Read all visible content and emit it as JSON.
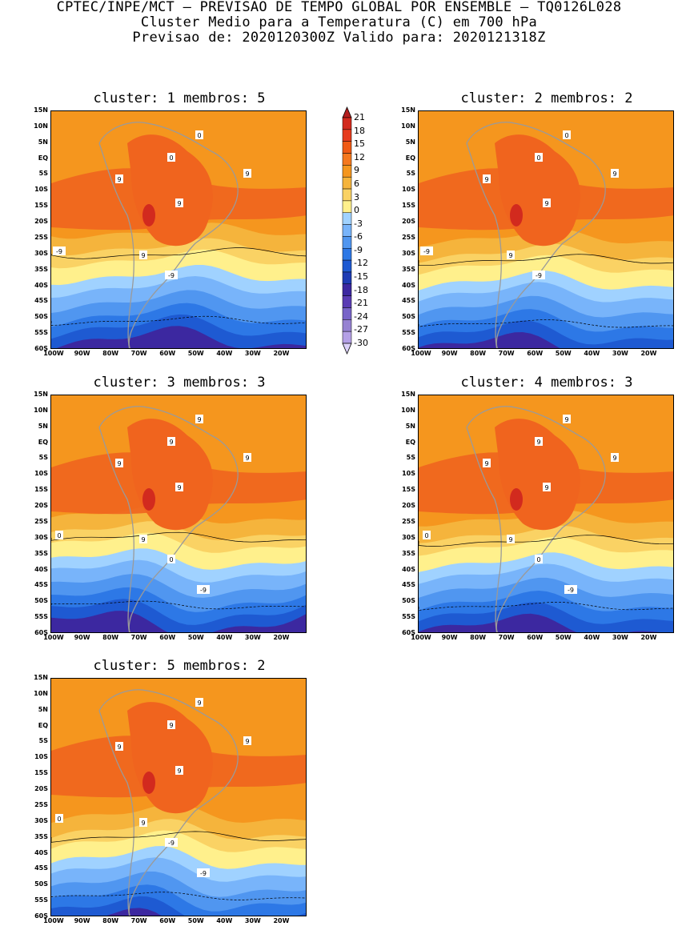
{
  "header": {
    "line1": "CPTEC/INPE/MCT – PREVISAO DE TEMPO GLOBAL POR ENSEMBLE – TQ0126L028",
    "line2": "Cluster Medio para a Temperatura (C) em 700 hPa",
    "line3": "Previsao de: 2020120300Z   Valido para: 2020121318Z"
  },
  "panels": [
    {
      "title": "cluster: 1   membros: 5",
      "contour_labels": [
        "9",
        "9",
        "9",
        "9",
        "0",
        "0",
        "-9",
        "-9"
      ]
    },
    {
      "title": "cluster: 2   membros: 2",
      "contour_labels": [
        "9",
        "9",
        "9",
        "9",
        "0",
        "0",
        "-9",
        "-9"
      ]
    },
    {
      "title": "cluster: 3   membros: 3",
      "contour_labels": [
        "9",
        "9",
        "9",
        "9",
        "9",
        "9",
        "0",
        "0",
        "-9"
      ]
    },
    {
      "title": "cluster: 4   membros: 3",
      "contour_labels": [
        "9",
        "9",
        "9",
        "9",
        "9",
        "9",
        "0",
        "0",
        "-9"
      ]
    },
    {
      "title": "cluster: 5   membros: 2",
      "contour_labels": [
        "9",
        "9",
        "9",
        "9",
        "9",
        "9",
        "0",
        "-9",
        "-9"
      ]
    }
  ],
  "axes": {
    "lat_labels": [
      "15N",
      "10N",
      "5N",
      "EQ",
      "5S",
      "10S",
      "15S",
      "20S",
      "25S",
      "30S",
      "35S",
      "40S",
      "45S",
      "50S",
      "55S",
      "60S"
    ],
    "lon_labels": [
      "100W",
      "90W",
      "80W",
      "70W",
      "60W",
      "50W",
      "40W",
      "30W",
      "20W"
    ]
  },
  "colorbar": {
    "labels": [
      "21",
      "18",
      "15",
      "12",
      "9",
      "6",
      "3",
      "0",
      "-3",
      "-6",
      "-9",
      "-12",
      "-15",
      "-18",
      "-21",
      "-24",
      "-27",
      "-30"
    ],
    "colors": [
      "#b41e1e",
      "#d22a1e",
      "#e63c1e",
      "#f05a14",
      "#f5781e",
      "#f5961e",
      "#f5b43c",
      "#fad264",
      "#fff08c",
      "#a0d2ff",
      "#78b4fa",
      "#5096f0",
      "#2d78e6",
      "#1e5ad2",
      "#1e3cb4",
      "#3c28a0",
      "#5a3cb4",
      "#7864c8",
      "#9682d2",
      "#b4a0e6",
      "#dcd2fa"
    ]
  }
}
